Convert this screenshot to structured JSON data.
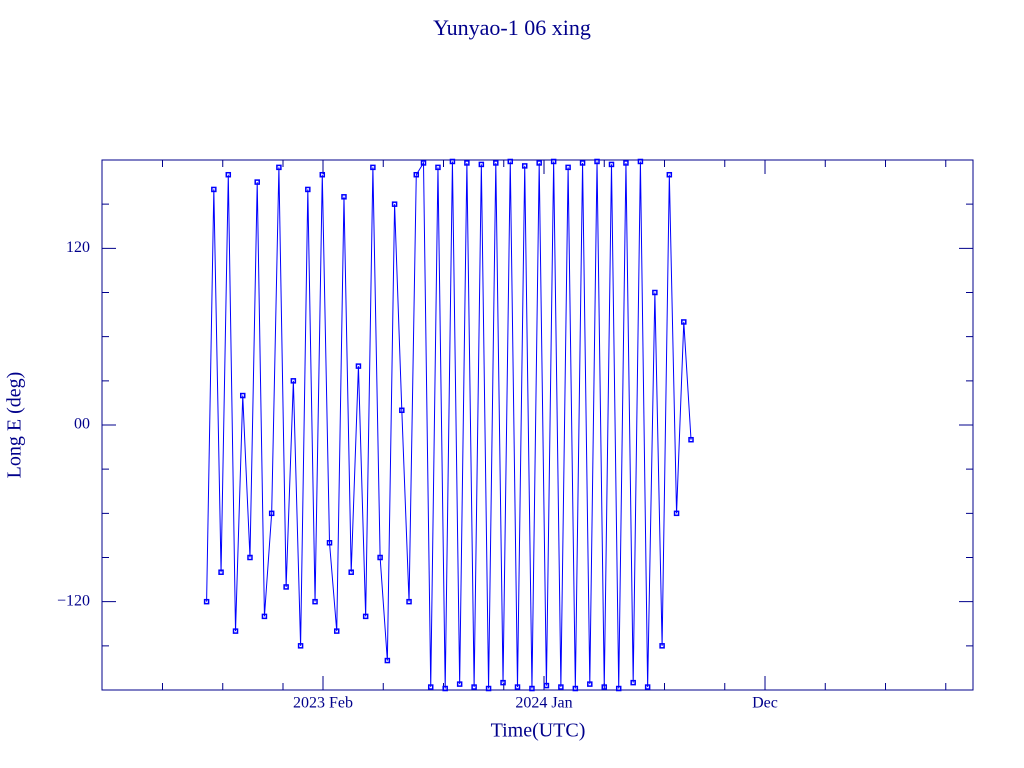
{
  "chart_data": {
    "type": "line",
    "title": "Yunyao-1 06 xing",
    "xlabel": "Time(UTC)",
    "ylabel": "Long E (deg)",
    "color": "#0000ff",
    "xlim": [
      2022.166,
      2025.78
    ],
    "xticks": [
      {
        "value": 2023.083,
        "label": "2023 Feb"
      },
      {
        "value": 2024.0,
        "label": "2024 Jan"
      },
      {
        "value": 2024.917,
        "label": "Dec"
      }
    ],
    "xminorticks": [
      2022.417,
      2022.667,
      2022.917,
      2023.333,
      2023.583,
      2023.833,
      2024.25,
      2024.5,
      2024.75,
      2025.167,
      2025.417,
      2025.667
    ],
    "ylim": [
      -180,
      180
    ],
    "yticks": [
      {
        "value": -120,
        "label": "−120"
      },
      {
        "value": 0,
        "label": "00"
      },
      120
    ],
    "yminorticks": [
      -150,
      -90,
      -60,
      -30,
      30,
      60,
      90,
      150
    ],
    "x": [
      2022.6,
      2022.63,
      2022.66,
      2022.69,
      2022.72,
      2022.75,
      2022.78,
      2022.81,
      2022.84,
      2022.87,
      2022.9,
      2022.93,
      2022.96,
      2022.99,
      2023.02,
      2023.05,
      2023.08,
      2023.11,
      2023.14,
      2023.17,
      2023.2,
      2023.23,
      2023.26,
      2023.29,
      2023.32,
      2023.35,
      2023.38,
      2023.41,
      2023.44,
      2023.47,
      2023.5,
      2023.53,
      2023.56,
      2023.59,
      2023.62,
      2023.65,
      2023.68,
      2023.71,
      2023.74,
      2023.77,
      2023.8,
      2023.83,
      2023.86,
      2023.89,
      2023.92,
      2023.95,
      2023.98,
      2024.01,
      2024.04,
      2024.07,
      2024.1,
      2024.13,
      2024.16,
      2024.19,
      2024.22,
      2024.25,
      2024.28,
      2024.31,
      2024.34,
      2024.37,
      2024.4,
      2024.43,
      2024.46,
      2024.49,
      2024.52,
      2024.55,
      2024.58,
      2024.61
    ],
    "values": [
      -120,
      160,
      -100,
      170,
      -140,
      20,
      -90,
      165,
      -130,
      -60,
      175,
      -110,
      30,
      -150,
      160,
      -120,
      170,
      -80,
      -140,
      155,
      -100,
      40,
      -130,
      175,
      -90,
      -160,
      150,
      10,
      -120,
      170,
      178,
      -178,
      175,
      -179,
      179,
      -176,
      178,
      -178,
      177,
      -179,
      178,
      -175,
      179,
      -178,
      176,
      -179,
      178,
      -177,
      179,
      -178,
      175,
      -179,
      178,
      -176,
      179,
      -178,
      177,
      -179,
      178,
      -175,
      179,
      -178,
      90,
      -150,
      170,
      -60,
      70,
      -10
    ]
  }
}
